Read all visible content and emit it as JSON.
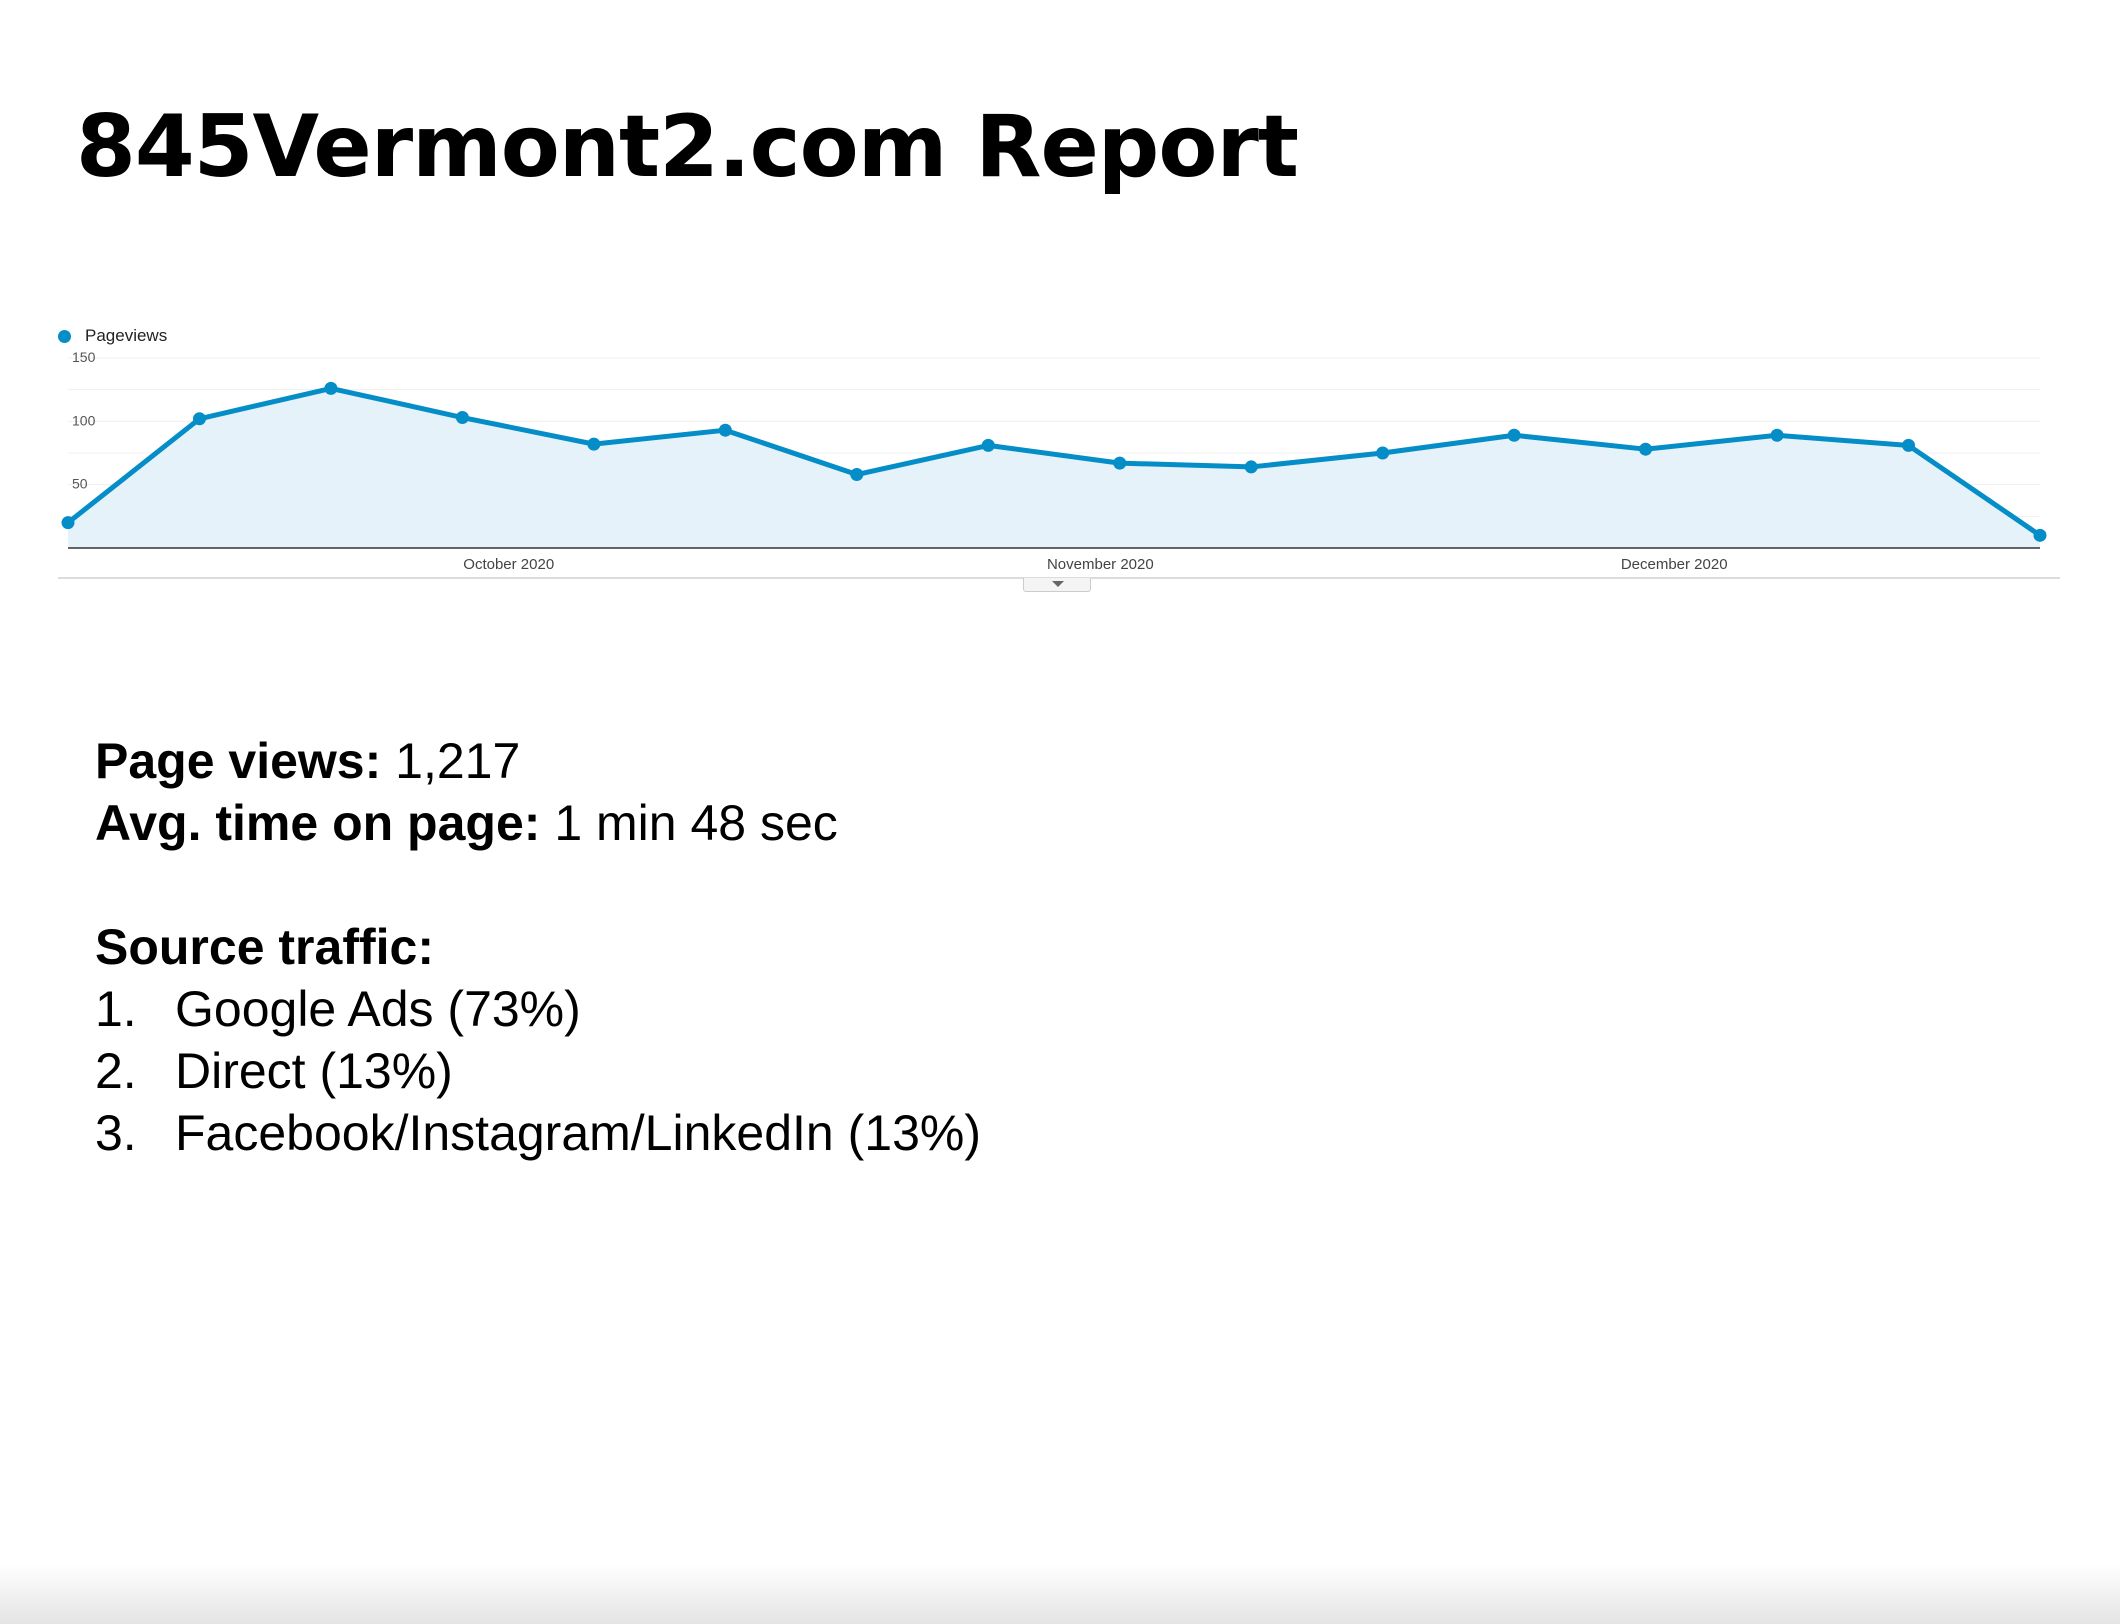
{
  "report": {
    "title": "845Vermont2.com Report"
  },
  "chart_data": {
    "type": "area",
    "title": "",
    "xlabel": "",
    "ylabel": "",
    "legend": [
      "Pageviews"
    ],
    "legend_position": "top-left",
    "grid": true,
    "color": "#058dc7",
    "fill_color": "#e6f2fa",
    "ylim": [
      0,
      150
    ],
    "yticks": [
      50,
      100,
      150
    ],
    "xtick_labels": [
      "October 2020",
      "November 2020",
      "December 2020"
    ],
    "series": [
      {
        "name": "Pageviews",
        "values": [
          20,
          102,
          126,
          103,
          82,
          93,
          58,
          81,
          67,
          64,
          75,
          89,
          78,
          89,
          81,
          10
        ]
      }
    ]
  },
  "stats": {
    "page_views_label": "Page views:",
    "page_views_value": "1,217",
    "avg_time_label": "Avg. time on page:",
    "avg_time_value": "1 min 48 sec",
    "source_heading": "Source traffic:",
    "sources": [
      {
        "num": "1.",
        "label": "Google Ads (73%)"
      },
      {
        "num": "2.",
        "label": "Direct (13%)"
      },
      {
        "num": "3.",
        "label": "Facebook/Instagram/LinkedIn (13%)"
      }
    ]
  }
}
